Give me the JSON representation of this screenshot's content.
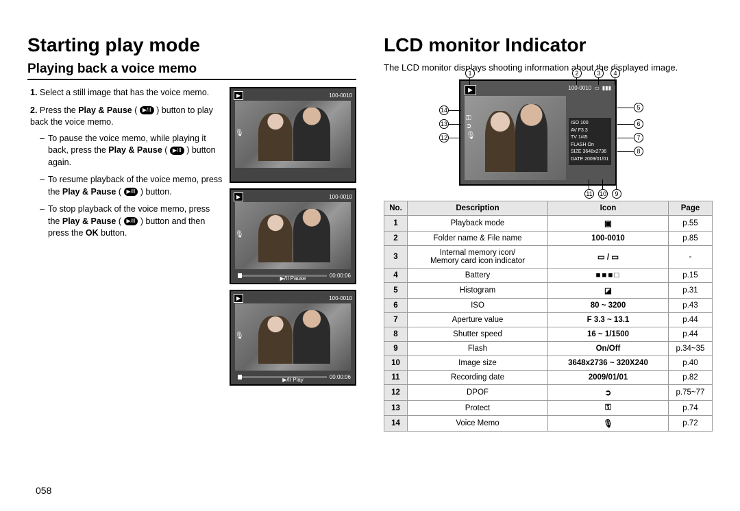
{
  "page_number": "058",
  "left": {
    "title": "Starting play mode",
    "subtitle": "Playing back a voice memo",
    "step1_num": "1.",
    "step1": "Select a still image that has the voice memo.",
    "step2_num": "2.",
    "step2_a": "Press the ",
    "step2_bold1": "Play & Pause",
    "step2_b": " ( ",
    "step2_c": " ) button to play back the voice memo.",
    "bullet1_a": "To pause the voice memo, while playing it back, press the ",
    "bullet1_bold": "Play & Pause",
    "bullet1_b": " ( ",
    "bullet1_c": " ) button again.",
    "bullet2_a": "To resume playback of the voice memo, press the ",
    "bullet2_bold": "Play & Pause",
    "bullet2_b": " ( ",
    "bullet2_c": " ) button.",
    "bullet3_a": "To stop playback of the voice memo, press the ",
    "bullet3_bold1": "Play & Pause",
    "bullet3_b": " ( ",
    "bullet3_c": " ) button and then press the ",
    "bullet3_bold2": "OK",
    "bullet3_d": " button.",
    "thumb_fileno": "100-0010",
    "thumb_time": "00:00:06",
    "thumb_pause_label": "▶/II  Pause",
    "thumb_play_label": "▶/II  Play"
  },
  "right": {
    "title": "LCD monitor Indicator",
    "intro": "The LCD monitor displays shooting information about the displayed image.",
    "diagram": {
      "fileno": "100-0010",
      "panel_labels": {
        "iso": "ISO",
        "iso_v": "100",
        "av": "AV",
        "av_v": "F3.3",
        "tv": "TV",
        "tv_v": "1/45",
        "flash": "FLASH",
        "flash_v": "On",
        "size": "SIZE",
        "size_v": "3648x2736",
        "date": "DATE",
        "date_v": "2009/01/01"
      }
    },
    "table": {
      "headers": {
        "no": "No.",
        "desc": "Description",
        "icon": "Icon",
        "page": "Page"
      },
      "rows": [
        {
          "no": "1",
          "desc": "Playback mode",
          "icon": "▣",
          "page": "p.55"
        },
        {
          "no": "2",
          "desc": "Folder name & File name",
          "icon": "100-0010",
          "page": "p.85"
        },
        {
          "no": "3",
          "desc": "Internal memory icon/\nMemory card icon indicator",
          "icon": "▭ / ▭",
          "page": "-"
        },
        {
          "no": "4",
          "desc": "Battery",
          "icon": "■■■□",
          "page": "p.15"
        },
        {
          "no": "5",
          "desc": "Histogram",
          "icon": "◪",
          "page": "p.31"
        },
        {
          "no": "6",
          "desc": "ISO",
          "icon": "80 ~ 3200",
          "page": "p.43"
        },
        {
          "no": "7",
          "desc": "Aperture value",
          "icon": "F 3.3 ~ 13.1",
          "page": "p.44"
        },
        {
          "no": "8",
          "desc": "Shutter speed",
          "icon": "16 ~ 1/1500",
          "page": "p.44"
        },
        {
          "no": "9",
          "desc": "Flash",
          "icon": "On/Off",
          "page": "p.34~35"
        },
        {
          "no": "10",
          "desc": "Image size",
          "icon": "3648x2736 ~ 320X240",
          "page": "p.40"
        },
        {
          "no": "11",
          "desc": "Recording date",
          "icon": "2009/01/01",
          "page": "p.82"
        },
        {
          "no": "12",
          "desc": "DPOF",
          "icon": "➲",
          "page": "p.75~77"
        },
        {
          "no": "13",
          "desc": "Protect",
          "icon": "⚿",
          "page": "p.74"
        },
        {
          "no": "14",
          "desc": "Voice Memo",
          "icon": "🎙",
          "page": "p.72"
        }
      ]
    }
  }
}
